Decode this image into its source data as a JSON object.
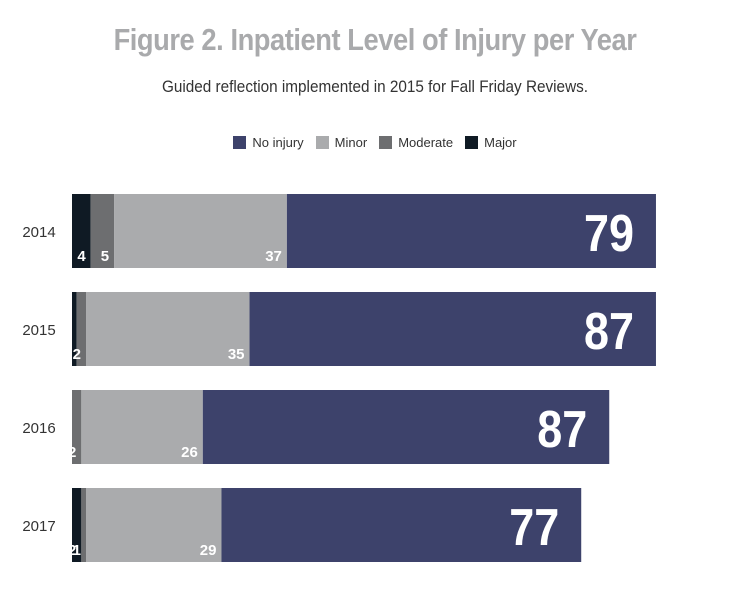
{
  "header": {
    "title": "Figure 2. Inpatient Level of Injury per Year",
    "subtitle": "Guided reflection implemented in 2015 for Fall Friday Reviews."
  },
  "colors": {
    "No injury": "#3d426b",
    "Minor": "#aaabad",
    "Moderate": "#6d6e70",
    "Major": "#0f1a24",
    "label_light": "#ffffff"
  },
  "chart_data": {
    "type": "bar",
    "orientation": "horizontal",
    "stacked": true,
    "title": "Figure 2. Inpatient Level of Injury per Year",
    "subtitle": "Guided reflection implemented in 2015 for Fall Friday Reviews.",
    "categories": [
      "2014",
      "2015",
      "2016",
      "2017"
    ],
    "series": [
      {
        "name": "Major",
        "values": [
          4,
          1,
          0,
          2
        ]
      },
      {
        "name": "Moderate",
        "values": [
          5,
          2,
          2,
          1
        ]
      },
      {
        "name": "Minor",
        "values": [
          37,
          35,
          26,
          29
        ]
      },
      {
        "name": "No injury",
        "values": [
          79,
          87,
          87,
          77
        ]
      }
    ],
    "legend": {
      "order": [
        "No injury",
        "Minor",
        "Moderate",
        "Major"
      ],
      "position": "top-center"
    },
    "xlim": [
      0,
      131
    ],
    "axes_visible": false,
    "grid": false
  }
}
